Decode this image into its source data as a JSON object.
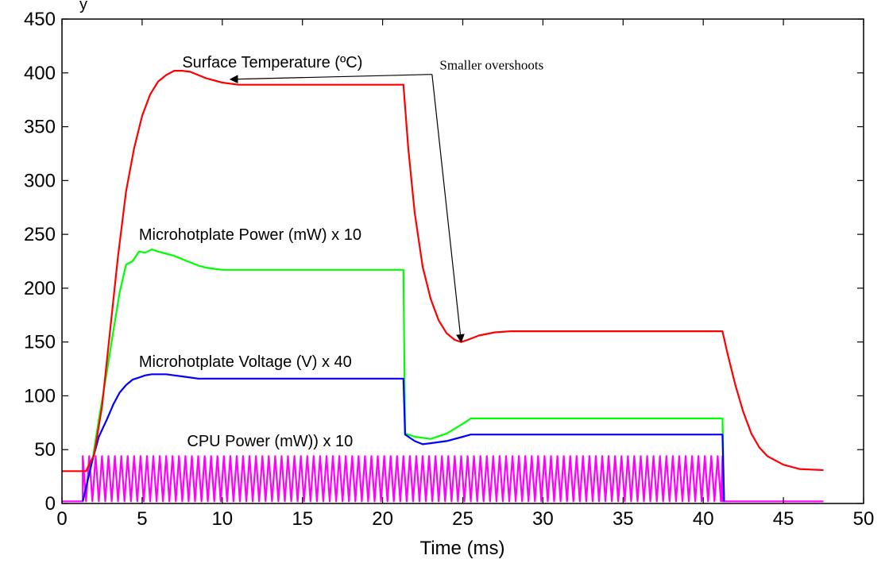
{
  "chart_data": {
    "type": "line",
    "title": "",
    "xlabel": "Time (ms)",
    "ylabel": "",
    "xlim": [
      0,
      50
    ],
    "ylim": [
      0,
      450
    ],
    "x_ticks": [
      0,
      5,
      10,
      15,
      20,
      25,
      30,
      35,
      40,
      45,
      50
    ],
    "y_ticks": [
      0,
      50,
      100,
      150,
      200,
      250,
      300,
      350,
      400,
      450
    ],
    "grid": false,
    "legend": "none",
    "series": [
      {
        "name": "Surface Temperature (ºC)",
        "color": "#ff0000",
        "x": [
          0,
          1.5,
          2.0,
          2.5,
          3.0,
          3.5,
          4.0,
          4.5,
          5.0,
          5.5,
          6.0,
          6.5,
          7.0,
          7.5,
          8.0,
          8.5,
          9.0,
          10.0,
          11.0,
          12.0,
          14.0,
          21.3,
          21.6,
          22.0,
          22.5,
          23.0,
          23.5,
          24.0,
          24.5,
          24.9,
          25.3,
          26.0,
          27.0,
          28.0,
          30.0,
          41.2,
          41.5,
          42.0,
          42.5,
          43.0,
          43.5,
          44.0,
          45.0,
          46.0,
          47.5
        ],
        "values": [
          30,
          30,
          45,
          90,
          160,
          230,
          290,
          330,
          360,
          380,
          392,
          398,
          402,
          402,
          401,
          398,
          395,
          391,
          389,
          389,
          389,
          389,
          330,
          270,
          220,
          190,
          170,
          158,
          152,
          150,
          152,
          156,
          159,
          160,
          160,
          160,
          140,
          110,
          85,
          65,
          52,
          44,
          36,
          32,
          31
        ]
      },
      {
        "name": "Microhotplate Power (mW) x 10",
        "color": "#00ff00",
        "x": [
          1.3,
          1.9,
          2.3,
          2.8,
          3.2,
          3.6,
          4.0,
          4.4,
          4.8,
          5.2,
          5.6,
          6.0,
          6.5,
          7.0,
          7.5,
          8.0,
          8.5,
          9.0,
          9.5,
          10.0,
          15.0,
          21.3,
          21.4,
          22.0,
          23.0,
          24.0,
          25.0,
          25.5,
          26.0,
          30.0,
          35.0,
          41.2,
          41.3
        ],
        "values": [
          2,
          40,
          78,
          122,
          160,
          196,
          222,
          225,
          234,
          233,
          236,
          234,
          232,
          230,
          227,
          224,
          221,
          219,
          218,
          217,
          217,
          217,
          65,
          62,
          60,
          65,
          74,
          79,
          79,
          79,
          79,
          79,
          2
        ]
      },
      {
        "name": "Microhotplate Voltage (V) x 40",
        "color": "#0000ff",
        "x": [
          1.3,
          1.9,
          2.3,
          2.8,
          3.2,
          3.6,
          4.0,
          4.4,
          4.8,
          5.2,
          5.6,
          6.0,
          6.5,
          7.0,
          7.5,
          8.0,
          8.5,
          9.0,
          9.5,
          10.0,
          15.0,
          21.3,
          21.4,
          22.0,
          22.5,
          23.0,
          24.0,
          25.0,
          25.5,
          26.0,
          30.0,
          35.0,
          41.2,
          41.3
        ],
        "values": [
          2,
          40,
          62,
          78,
          92,
          103,
          110,
          115,
          117,
          119,
          120,
          120,
          120,
          119,
          118,
          117,
          116,
          116,
          116,
          116,
          116,
          116,
          64,
          58,
          55,
          56,
          58,
          62,
          64,
          64,
          64,
          64,
          64,
          2
        ]
      },
      {
        "name": "CPU Power (mW)) x 10",
        "color": "#ff00ff",
        "x": [
          0,
          1.3,
          41.2,
          41.5,
          47.5
        ],
        "values": [
          2,
          2,
          2,
          2,
          2
        ],
        "pulse": {
          "start": 1.3,
          "end": 41.2,
          "period": 0.4,
          "high": 44,
          "low": 2
        }
      }
    ],
    "annotations": [
      {
        "text": "Surface Temperature (ºC)",
        "x": 7.5,
        "y": 405
      },
      {
        "text": "Microhotplate Power (mW) x 10",
        "x": 4.8,
        "y": 245
      },
      {
        "text": "Microhotplate Voltage (V) x 40",
        "x": 4.8,
        "y": 127
      },
      {
        "text": "CPU Power (mW)) x 10",
        "x": 7.8,
        "y": 53
      },
      {
        "text": "Smaller overshoots",
        "x": 26.8,
        "y": 403,
        "arrows_to": [
          [
            10.5,
            394
          ],
          [
            24.9,
            150
          ]
        ]
      }
    ]
  },
  "header_text": "y"
}
